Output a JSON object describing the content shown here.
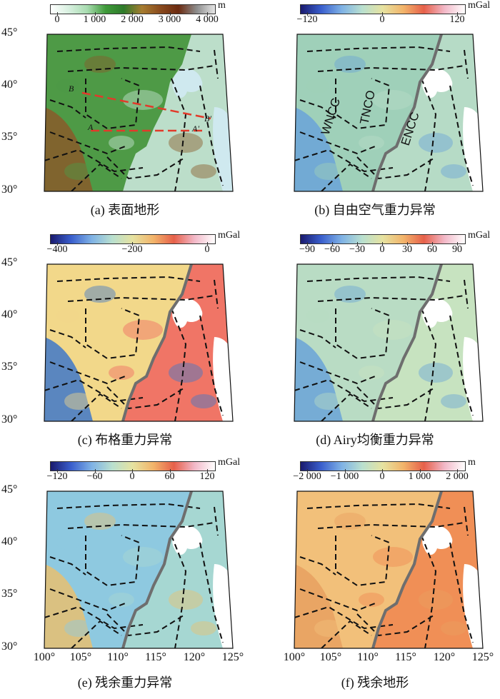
{
  "panels": [
    {
      "id": "a",
      "caption": "(a) 表面地形",
      "colorbar": {
        "unit": "m",
        "ticks": [
          "0",
          "1 000",
          "2 000",
          "3 000",
          "4 000"
        ],
        "colors": [
          "#ffffff",
          "#d8f0e0",
          "#a8dcb0",
          "#3f9a3a",
          "#2e7a2a",
          "#a67c30",
          "#8a4b1e",
          "#6b2a10",
          "#8d8d8d",
          "#e6e6e6"
        ]
      },
      "lat_labels": [
        "45°",
        "40°",
        "35°",
        "30°"
      ],
      "lon_labels": [],
      "map_labels": {
        "b": "B",
        "a": "A",
        "b_prime": "B'",
        "a_prime": "A'"
      },
      "colors": {
        "main": "#4e9a46",
        "east": "#c9e6d8",
        "west": "#8a5a2a",
        "sea": "#cfe9ef"
      }
    },
    {
      "id": "b",
      "caption": "(b) 自由空气重力异常",
      "colorbar": {
        "unit": "mGal",
        "ticks": [
          "−120",
          "0",
          "120"
        ],
        "colors": [
          "#1a1a6e",
          "#3a5fcd",
          "#7fb2e5",
          "#b9e0cf",
          "#e6e2a0",
          "#f2b46a",
          "#e6604a",
          "#f2b8c8",
          "#ffffff"
        ]
      },
      "lat_labels": [],
      "lon_labels": [],
      "map_labels": {
        "wncc": "WNCC",
        "tnco": "TNCO",
        "encc": "ENCC"
      },
      "colors": {
        "main": "#9fd0b9",
        "east": "#b8dcc8",
        "west": "#6aa3d8",
        "sea": "#ffffff"
      }
    },
    {
      "id": "c",
      "caption": "(c) 布格重力异常",
      "colorbar": {
        "unit": "mGal",
        "ticks": [
          "−400",
          "−200",
          "0"
        ],
        "colors": [
          "#1a1a6e",
          "#3a5fcd",
          "#7fb2e5",
          "#b9e0cf",
          "#e6e2a0",
          "#f2b46a",
          "#e6604a",
          "#f2b8c8",
          "#ffffff"
        ]
      },
      "lat_labels": [
        "45°",
        "40°",
        "35°",
        "30°"
      ],
      "lon_labels": [],
      "map_labels": {},
      "colors": {
        "main": "#f2d88a",
        "east": "#ef6a62",
        "west": "#3f78c8",
        "sea": "#ffffff"
      }
    },
    {
      "id": "d",
      "caption": "(d) Airy均衡重力异常",
      "colorbar": {
        "unit": "mGal",
        "ticks": [
          "−90",
          "−60",
          "−30",
          "0",
          "30",
          "60",
          "90"
        ],
        "colors": [
          "#1a1a6e",
          "#3a5fcd",
          "#7fb2e5",
          "#b9e0cf",
          "#e6e2a0",
          "#f2b46a",
          "#e6604a",
          "#f2b8c8",
          "#ffffff"
        ]
      },
      "lat_labels": [],
      "lon_labels": [],
      "map_labels": {},
      "colors": {
        "main": "#b9dcc4",
        "east": "#c9e3c0",
        "west": "#6aa3d8",
        "sea": "#ffffff"
      }
    },
    {
      "id": "e",
      "caption": "(e) 残余重力异常",
      "colorbar": {
        "unit": "mGal",
        "ticks": [
          "−120",
          "−60",
          "0",
          "60",
          "120"
        ],
        "colors": [
          "#1a1a6e",
          "#3a5fcd",
          "#7fb2e5",
          "#b9e0cf",
          "#e6e2a0",
          "#f2b46a",
          "#e6604a",
          "#f2b8c8",
          "#ffffff"
        ]
      },
      "lat_labels": [
        "45°",
        "40°",
        "35°",
        "30°"
      ],
      "lon_labels": [
        "100°",
        "105°",
        "110°",
        "115°",
        "120°",
        "125°"
      ],
      "map_labels": {},
      "colors": {
        "main": "#8ec9e0",
        "east": "#a9d8d0",
        "west": "#e8c070",
        "sea": "#ffffff"
      }
    },
    {
      "id": "f",
      "caption": "(f) 残余地形",
      "colorbar": {
        "unit": "m",
        "ticks": [
          "−2 000",
          "−1 000",
          "0",
          "1 000",
          "2 000"
        ],
        "colors": [
          "#1a1a6e",
          "#3a5fcd",
          "#7fb2e5",
          "#b9e0cf",
          "#e6e2a0",
          "#f2b46a",
          "#e6604a",
          "#f2b8c8",
          "#ffffff"
        ]
      },
      "lat_labels": [],
      "lon_labels": [
        "100°",
        "105°",
        "110°",
        "115°",
        "120°",
        "125°"
      ],
      "map_labels": {},
      "colors": {
        "main": "#f2c07a",
        "east": "#ef8a52",
        "west": "#e8a060",
        "sea": "#ffffff"
      }
    }
  ]
}
